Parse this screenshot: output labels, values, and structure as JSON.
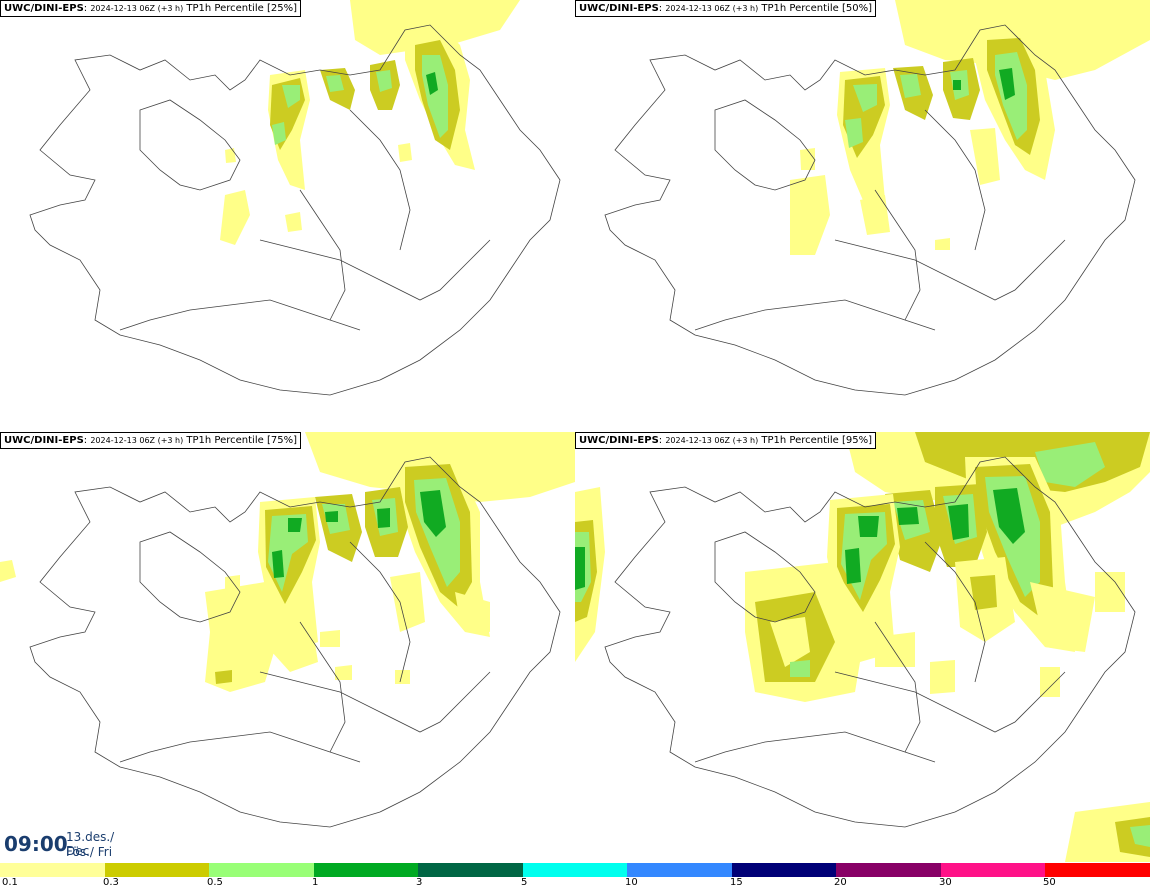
{
  "panels": [
    {
      "model": "UWC/DINI-EPS",
      "date": "2024-12-13 06Z (+3 h)",
      "label": "TP1h Percentile [25%]"
    },
    {
      "model": "UWC/DINI-EPS",
      "date": "2024-12-13 06Z (+3 h)",
      "label": "TP1h Percentile [50%]"
    },
    {
      "model": "UWC/DINI-EPS",
      "date": "2024-12-13 06Z (+3 h)",
      "label": "TP1h Percentile [75%]"
    },
    {
      "model": "UWC/DINI-EPS",
      "date": "2024-12-13 06Z (+3 h)",
      "label": "TP1h Percentile [95%]"
    }
  ],
  "time": {
    "hour": "09:00",
    "date": "13.des./ Dec",
    "day": "Fös./ Fri"
  },
  "legend": {
    "colors": [
      "#ffff99",
      "#cccc00",
      "#99ff77",
      "#00aa22",
      "#006644",
      "#00ffee",
      "#3388ff",
      "#000077",
      "#880066",
      "#ff1188",
      "#ff0000"
    ],
    "ticks": [
      "0.1",
      "0.3",
      "0.5",
      "1",
      "3",
      "5",
      "10",
      "15",
      "20",
      "30",
      "50"
    ]
  },
  "colors": {
    "light": "#ffff88",
    "mid": "#cccc22",
    "pale_green": "#99ee77",
    "green": "#11aa22",
    "dark_green": "#006633",
    "coast": "#444444"
  }
}
